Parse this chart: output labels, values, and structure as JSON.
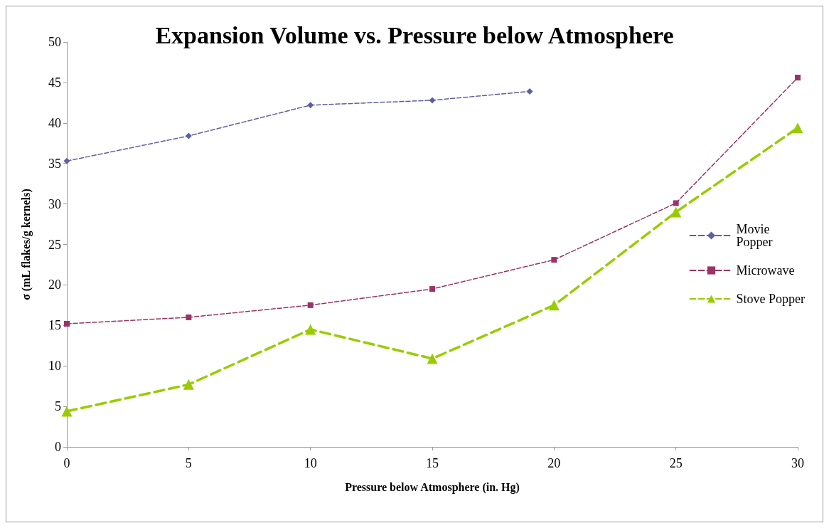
{
  "chart_data": {
    "type": "line",
    "title": "Expansion Volume vs. Pressure below Atmosphere",
    "xlabel": "Pressure below Atmosphere (in. Hg)",
    "ylabel": "σ (mL flakes/g kernels)",
    "xlim": [
      0,
      30
    ],
    "xticks": [
      0,
      5,
      10,
      15,
      20,
      25,
      30
    ],
    "ylim": [
      0,
      50
    ],
    "yticks": [
      0,
      5,
      10,
      15,
      20,
      25,
      30,
      35,
      40,
      45,
      50
    ],
    "grid": false,
    "legend": "right",
    "line_style": "dashed",
    "series": [
      {
        "name": "Movie Popper",
        "color": "#5f5f9f",
        "marker": "diamond",
        "x": [
          0,
          5,
          10,
          15,
          19
        ],
        "values": [
          35.3,
          38.4,
          42.2,
          42.8,
          43.9
        ]
      },
      {
        "name": "Microwave",
        "color": "#993366",
        "marker": "square",
        "x": [
          0,
          5,
          10,
          15,
          20,
          25,
          30
        ],
        "values": [
          15.2,
          16.0,
          17.5,
          19.5,
          23.1,
          30.1,
          45.6
        ]
      },
      {
        "name": "Stove Popper",
        "color": "#99cc00",
        "marker": "triangle",
        "x": [
          0,
          5,
          10,
          15,
          20,
          25,
          30
        ],
        "values": [
          4.4,
          7.7,
          14.5,
          10.9,
          17.5,
          29.0,
          39.4
        ]
      }
    ]
  }
}
